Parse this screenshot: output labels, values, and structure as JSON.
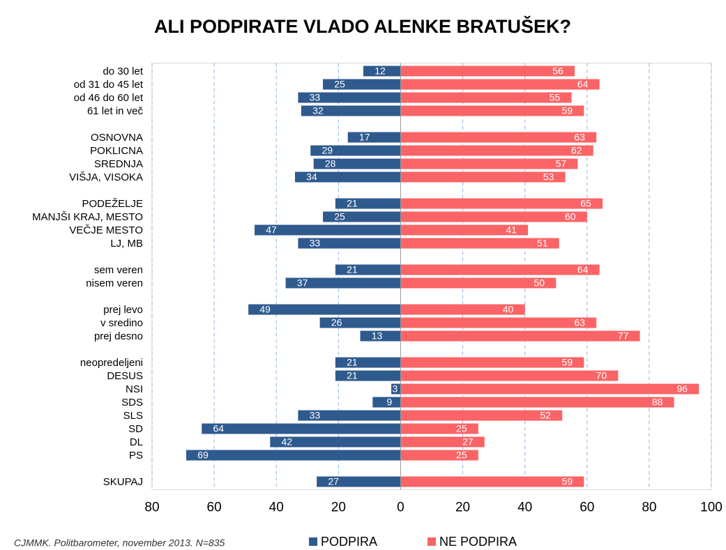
{
  "chart_data": {
    "type": "diverging-bar",
    "title": "ALI PODPIRATE VLADO ALENKE BRATUŠEK?",
    "source": "CJMMK. Politbarometer, november 2013. N=835",
    "categories": [
      "do 30 let",
      "od 31 do 45 let",
      "od 46 do 60 let",
      "61 let in več",
      null,
      "OSNOVNA",
      "POKLICNA",
      "SREDNJA",
      "VIŠJA, VISOKA",
      null,
      "PODEŽELJE",
      "MANJŠI KRAJ, MESTO",
      "VEČJE MESTO",
      "LJ, MB",
      null,
      "sem veren",
      "nisem veren",
      null,
      "prej levo",
      "v sredino",
      "prej desno",
      null,
      "neopredeljeni",
      "DESUS",
      "NSI",
      "SDS",
      "SLS",
      "SD",
      "DL",
      "PS",
      null,
      "SKUPAJ"
    ],
    "series": [
      {
        "name": "PODPIRA",
        "color": "#2f5a8e",
        "values": [
          -12,
          -25,
          -33,
          -32,
          null,
          -17,
          -29,
          -28,
          -34,
          null,
          -21,
          -25,
          -47,
          -33,
          null,
          -21,
          -37,
          null,
          -49,
          -26,
          -13,
          null,
          -21,
          -21,
          -3,
          -9,
          -33,
          -64,
          -42,
          -69,
          null,
          -27
        ],
        "value_labels": [
          "12",
          "25",
          "33",
          "32",
          null,
          "17",
          "29",
          "28",
          "34",
          null,
          "21",
          "25",
          "47",
          "33",
          null,
          "21",
          "37",
          null,
          "49",
          "26",
          "13",
          null,
          "21",
          "21",
          "3",
          "9",
          "33",
          "64",
          "42",
          "69",
          null,
          "27"
        ]
      },
      {
        "name": "NE PODPIRA",
        "color": "#fa6466",
        "values": [
          56,
          64,
          55,
          59,
          null,
          63,
          62,
          57,
          53,
          null,
          65,
          60,
          41,
          51,
          null,
          64,
          50,
          null,
          40,
          63,
          77,
          null,
          59,
          70,
          96,
          88,
          52,
          25,
          27,
          25,
          null,
          59
        ]
      }
    ],
    "xlim": [
      -80,
      100
    ],
    "xticks": [
      {
        "value": -80,
        "label": "80"
      },
      {
        "value": -60,
        "label": "60"
      },
      {
        "value": -40,
        "label": "40"
      },
      {
        "value": -20,
        "label": "20"
      },
      0,
      20,
      40,
      60,
      80,
      100
    ],
    "grid": true
  }
}
